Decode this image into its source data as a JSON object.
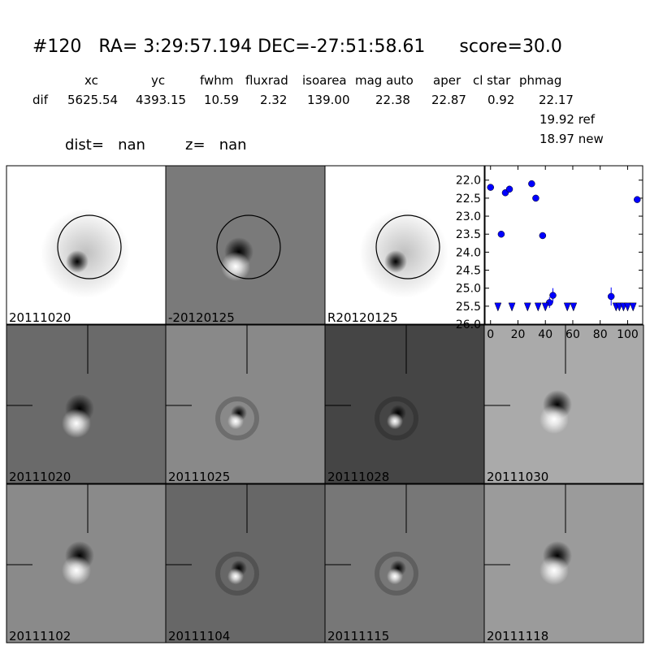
{
  "header": {
    "title": "#120   RA= 3:29:57.194 DEC=-27:51:58.61      score=30.0"
  },
  "table": {
    "columns": [
      "xc",
      "yc",
      "fwhm",
      "fluxrad",
      "isoarea",
      "mag auto",
      "aper",
      "cl star",
      "phmag"
    ],
    "row_label": "dif",
    "row": [
      "5625.54",
      "4393.15",
      "10.59",
      "2.32",
      "139.00",
      "22.38",
      "22.87",
      "0.92",
      "22.17"
    ],
    "extra": [
      "19.92 ref",
      "18.97 new"
    ]
  },
  "dist": "dist=   nan",
  "z": "z=   nan",
  "stamps": [
    {
      "label": "20111020"
    },
    {
      "label": "-20120125"
    },
    {
      "label": "R20120125"
    },
    {
      "label": "20111020",
      "color": "#ff0000"
    },
    {
      "label": "20111025"
    },
    {
      "label": "20111028"
    },
    {
      "label": "20111030"
    },
    {
      "label": "20111102"
    },
    {
      "label": "20111104"
    },
    {
      "label": "20111115"
    },
    {
      "label": "20111118"
    }
  ],
  "chart_data": {
    "type": "scatter",
    "xlim": [
      -4,
      111
    ],
    "ylim": [
      26.0,
      21.6
    ],
    "xticks": [
      0,
      20,
      40,
      60,
      80,
      100
    ],
    "yticks": [
      {
        "value": 22,
        "label": "22.0"
      },
      22.5,
      {
        "value": 23,
        "label": "23.0"
      },
      23.5,
      {
        "value": 24,
        "label": "24.0"
      },
      24.5,
      {
        "value": 25,
        "label": "25.0"
      },
      25.5,
      {
        "value": 26,
        "label": "26.0"
      }
    ],
    "series": [
      {
        "color": "#0000ff",
        "marker": "circle",
        "x": [
          0,
          7.8,
          10.8,
          13.8,
          30,
          33,
          38,
          43,
          45.5,
          88,
          107
        ],
        "values": [
          22.2,
          23.5,
          22.35,
          22.25,
          22.1,
          22.5,
          23.54,
          25.4,
          25.2,
          25.23,
          22.54
        ],
        "errors": [
          0.03,
          0.03,
          0.03,
          0.03,
          0.03,
          0.03,
          0.03,
          0.15,
          0.2,
          0.25,
          0.03
        ]
      },
      {
        "color": "#0000ff",
        "marker": "triangle-down",
        "x": [
          5.4,
          15.6,
          27,
          34.7,
          40,
          56,
          60.5,
          91.6,
          94,
          97,
          100,
          104
        ],
        "values": [
          25.5,
          25.5,
          25.5,
          25.5,
          25.5,
          25.5,
          25.5,
          25.5,
          25.5,
          25.5,
          25.5,
          25.5
        ]
      }
    ]
  }
}
